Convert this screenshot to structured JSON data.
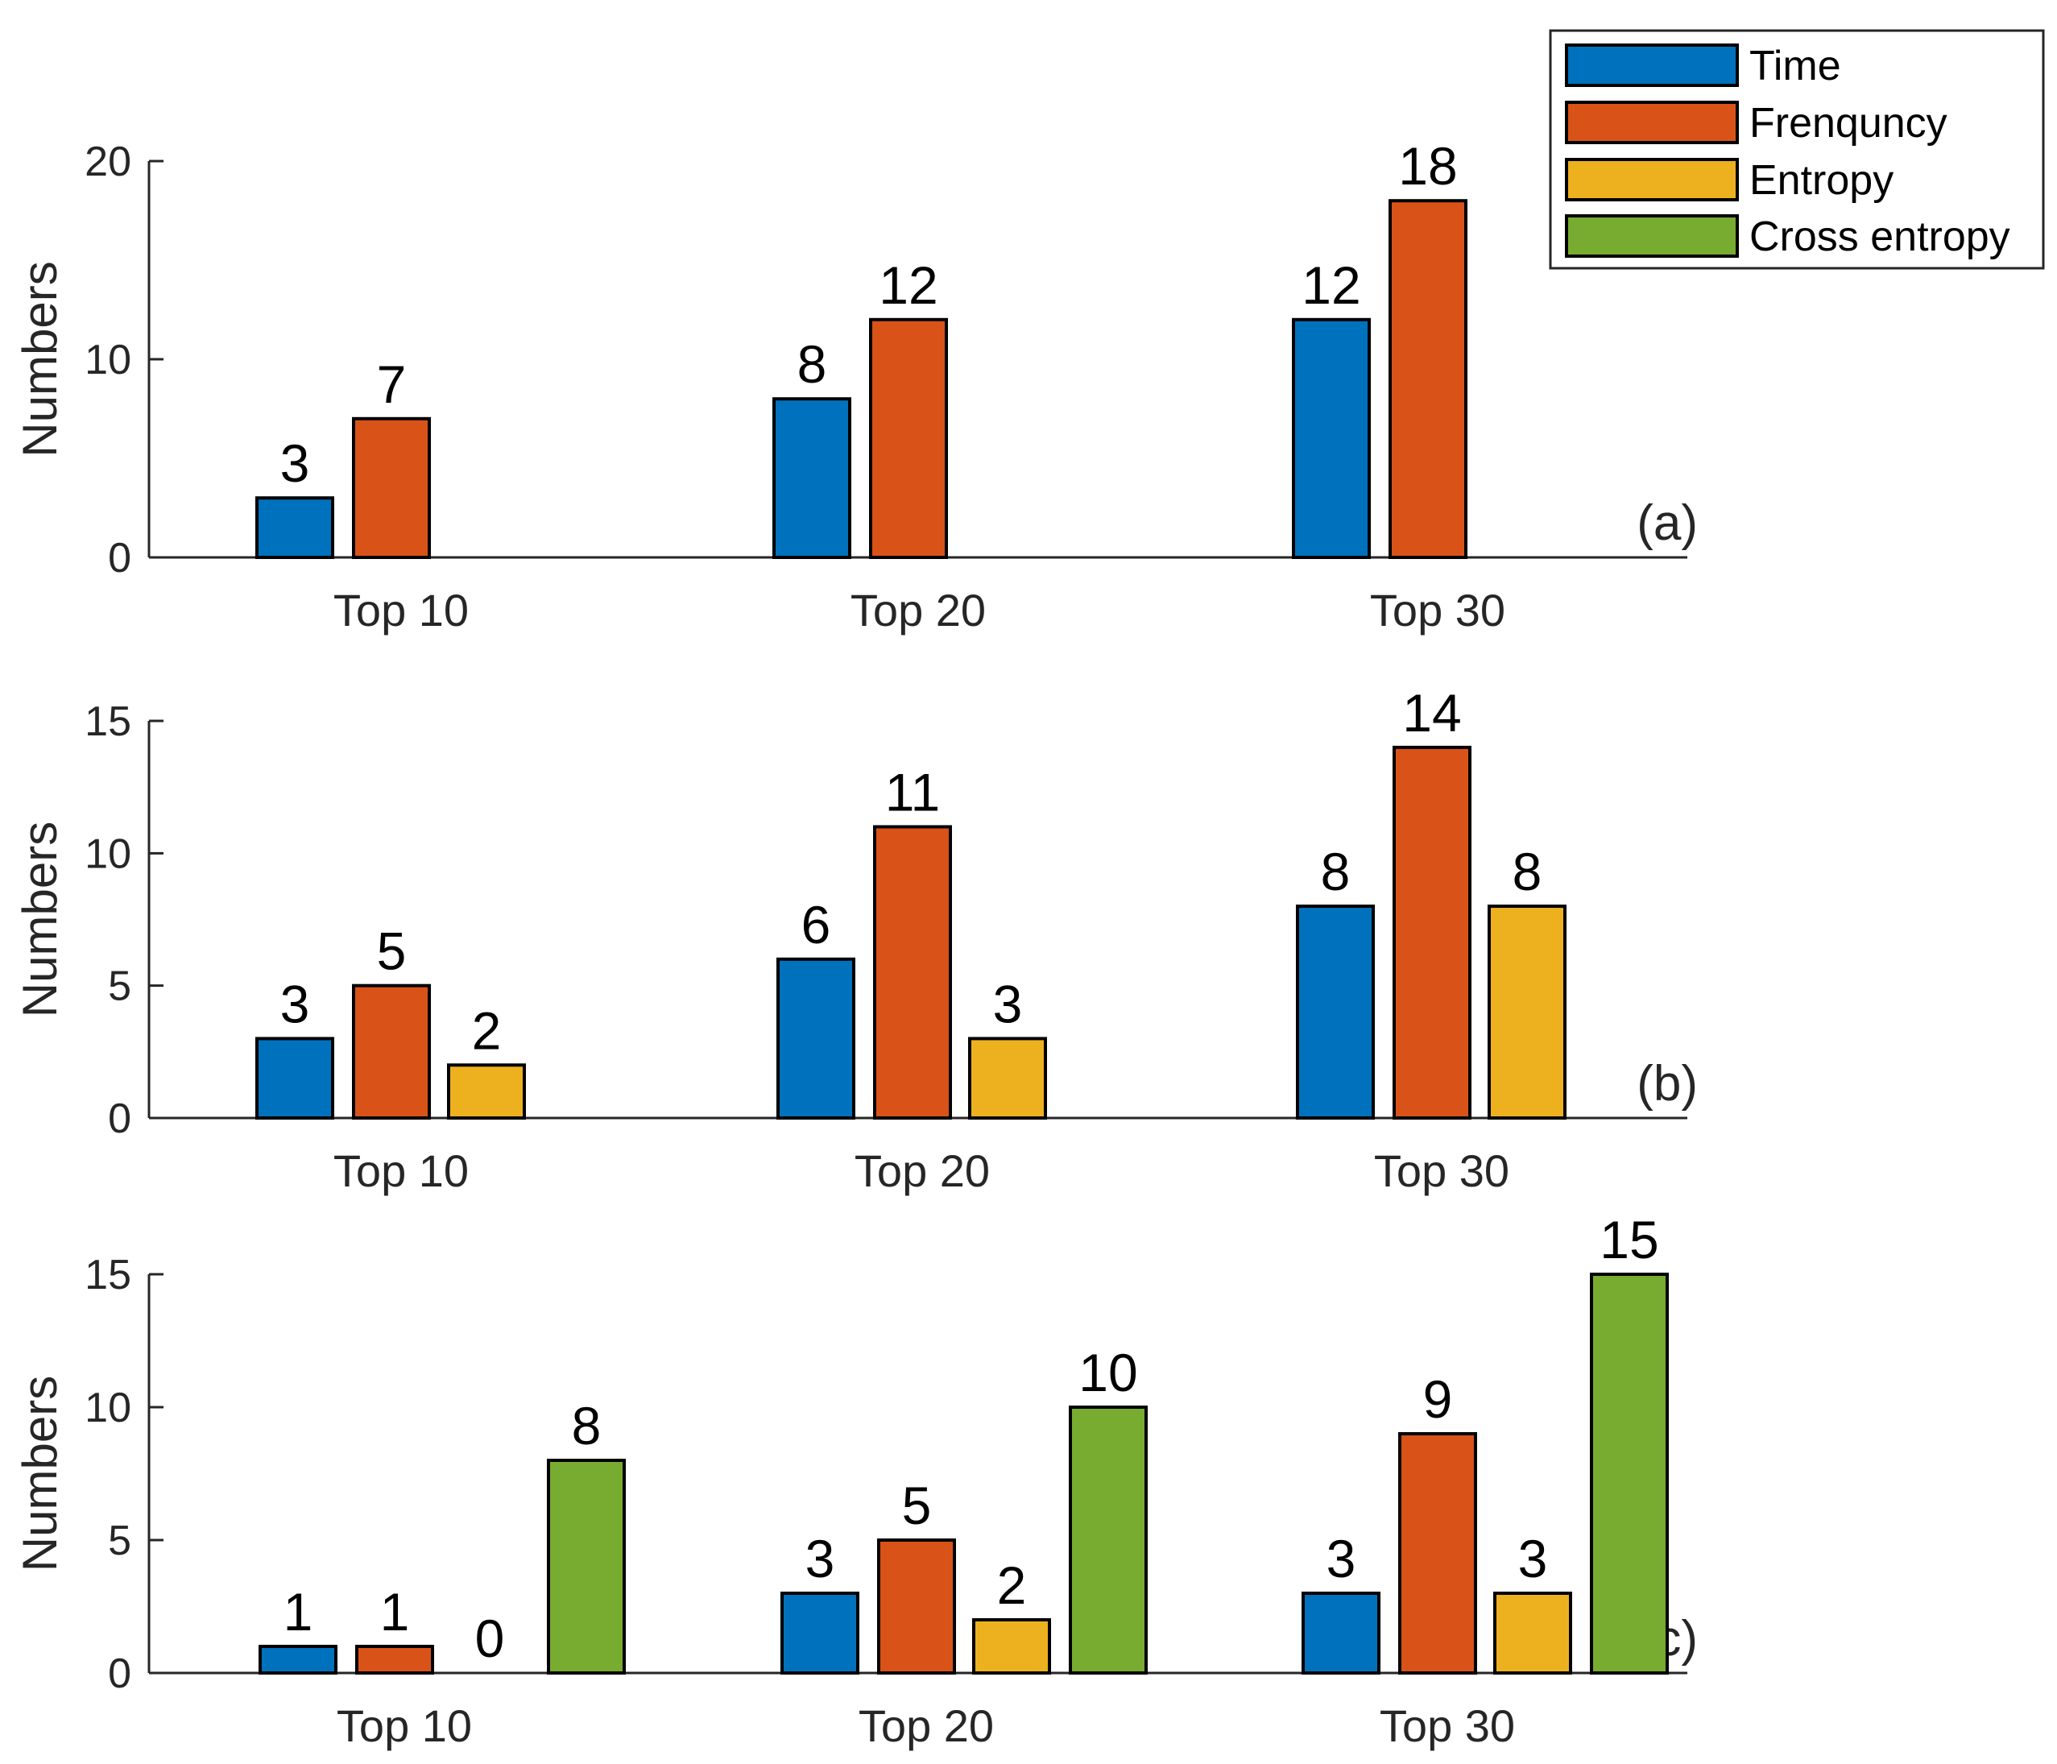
{
  "chart_data": [
    {
      "type": "bar",
      "panel": "(a)",
      "categories": [
        "Top 10",
        "Top 20",
        "Top 30"
      ],
      "ylabel": "Numbers",
      "ylim": [
        0,
        20
      ],
      "yticks": [
        0,
        10,
        20
      ],
      "series": [
        {
          "name": "Time",
          "values": [
            3,
            8,
            12
          ]
        },
        {
          "name": "Frenquncy",
          "values": [
            7,
            12,
            18
          ]
        }
      ]
    },
    {
      "type": "bar",
      "panel": "(b)",
      "categories": [
        "Top 10",
        "Top 20",
        "Top 30"
      ],
      "ylabel": "Numbers",
      "ylim": [
        0,
        15
      ],
      "yticks": [
        0,
        5,
        10,
        15
      ],
      "series": [
        {
          "name": "Time",
          "values": [
            3,
            6,
            8
          ]
        },
        {
          "name": "Frenquncy",
          "values": [
            5,
            11,
            14
          ]
        },
        {
          "name": "Entropy",
          "values": [
            2,
            3,
            8
          ]
        }
      ]
    },
    {
      "type": "bar",
      "panel": "(c)",
      "categories": [
        "Top 10",
        "Top 20",
        "Top 30"
      ],
      "ylabel": "Numbers",
      "ylim": [
        0,
        15
      ],
      "yticks": [
        0,
        5,
        10,
        15
      ],
      "series": [
        {
          "name": "Time",
          "values": [
            1,
            3,
            3
          ]
        },
        {
          "name": "Frenquncy",
          "values": [
            1,
            5,
            9
          ]
        },
        {
          "name": "Entropy",
          "values": [
            0,
            2,
            3
          ]
        },
        {
          "name": "Cross entropy",
          "values": [
            8,
            10,
            15
          ]
        }
      ]
    }
  ],
  "legend": {
    "position": "top-right",
    "entries": [
      {
        "name": "Time",
        "color": "#0072BD"
      },
      {
        "name": "Frenquncy",
        "color": "#D95319"
      },
      {
        "name": "Entropy",
        "color": "#EDB120"
      },
      {
        "name": "Cross entropy",
        "color": "#77AC30"
      }
    ]
  }
}
